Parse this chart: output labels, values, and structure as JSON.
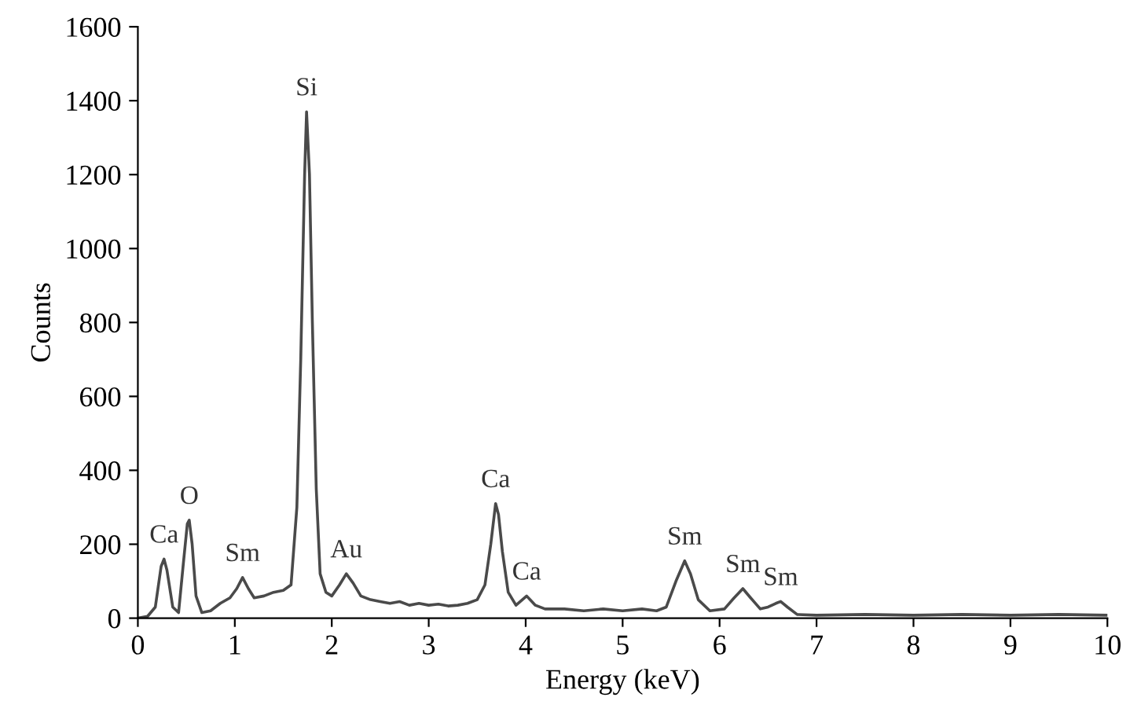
{
  "chart_data": {
    "type": "line",
    "xlabel": "Energy (keV)",
    "ylabel": "Counts",
    "xlim": [
      0,
      10
    ],
    "xticks": [
      0,
      1,
      2,
      3,
      4,
      5,
      6,
      7,
      8,
      9,
      10
    ],
    "ylim": [
      0,
      1600
    ],
    "yticks": [
      0,
      200,
      400,
      600,
      800,
      1000,
      1200,
      1400,
      1600
    ],
    "grid": false,
    "legend": false,
    "marker": "none",
    "line_style": "solid",
    "series": [
      {
        "color": "#4a4a4a",
        "x": [
          0,
          0.1,
          0.18,
          0.24,
          0.27,
          0.3,
          0.36,
          0.42,
          0.47,
          0.51,
          0.53,
          0.56,
          0.6,
          0.66,
          0.75,
          0.85,
          0.95,
          1.02,
          1.08,
          1.14,
          1.2,
          1.3,
          1.4,
          1.5,
          1.58,
          1.64,
          1.68,
          1.72,
          1.74,
          1.77,
          1.8,
          1.84,
          1.88,
          1.94,
          2.0,
          2.08,
          2.15,
          2.22,
          2.3,
          2.4,
          2.5,
          2.6,
          2.7,
          2.8,
          2.9,
          3.0,
          3.1,
          3.2,
          3.3,
          3.4,
          3.5,
          3.58,
          3.64,
          3.69,
          3.72,
          3.76,
          3.82,
          3.9,
          4.01,
          4.1,
          4.2,
          4.4,
          4.6,
          4.8,
          5.0,
          5.2,
          5.35,
          5.45,
          5.55,
          5.64,
          5.7,
          5.78,
          5.9,
          6.05,
          6.15,
          6.24,
          6.32,
          6.42,
          6.5,
          6.58,
          6.63,
          6.7,
          6.8,
          7.0,
          7.5,
          8.0,
          8.5,
          9.0,
          9.5,
          10
        ],
        "values": [
          0,
          5,
          30,
          140,
          160,
          130,
          30,
          15,
          150,
          255,
          265,
          200,
          60,
          15,
          20,
          40,
          55,
          80,
          110,
          80,
          55,
          60,
          70,
          75,
          90,
          300,
          700,
          1200,
          1370,
          1200,
          800,
          350,
          120,
          70,
          60,
          90,
          120,
          95,
          60,
          50,
          45,
          40,
          45,
          35,
          40,
          35,
          38,
          33,
          35,
          40,
          50,
          90,
          200,
          310,
          280,
          180,
          70,
          35,
          60,
          35,
          25,
          25,
          20,
          25,
          20,
          25,
          20,
          30,
          100,
          155,
          120,
          50,
          20,
          25,
          55,
          80,
          55,
          25,
          30,
          40,
          45,
          30,
          10,
          8,
          10,
          8,
          10,
          8,
          10,
          8
        ]
      }
    ],
    "annotations": [
      {
        "text": "Ca",
        "x": 0.27,
        "y": 160
      },
      {
        "text": "O",
        "x": 0.53,
        "y": 265
      },
      {
        "text": "Sm",
        "x": 1.08,
        "y": 110
      },
      {
        "text": "Si",
        "x": 1.74,
        "y": 1370
      },
      {
        "text": "Au",
        "x": 2.15,
        "y": 120
      },
      {
        "text": "Ca",
        "x": 3.69,
        "y": 310
      },
      {
        "text": "Ca",
        "x": 4.01,
        "y": 60
      },
      {
        "text": "Sm",
        "x": 5.64,
        "y": 155
      },
      {
        "text": "Sm",
        "x": 6.24,
        "y": 80
      },
      {
        "text": "Sm",
        "x": 6.63,
        "y": 45
      }
    ]
  }
}
